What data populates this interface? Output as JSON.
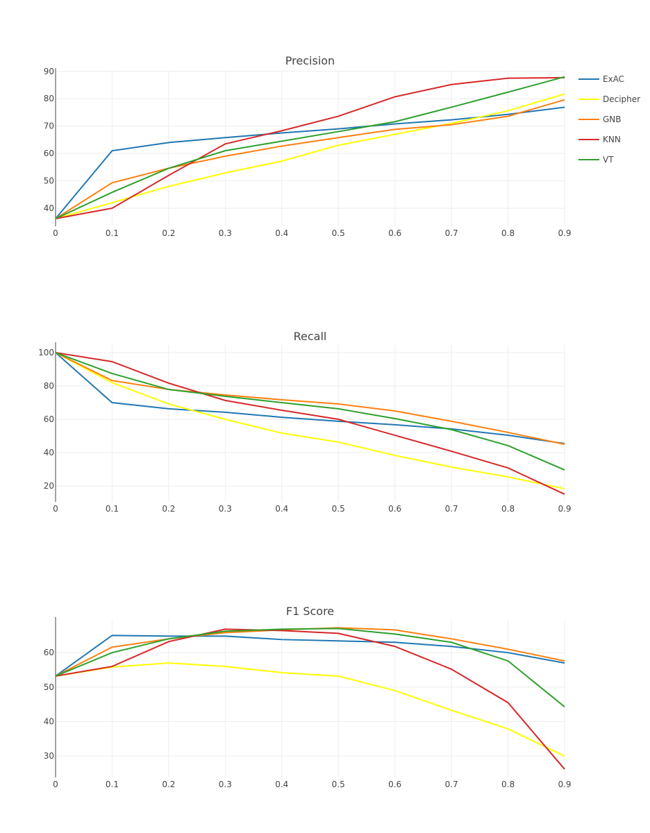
{
  "legend": [
    {
      "name": "ExAC",
      "color": "#1f77b4"
    },
    {
      "name": "Decipher",
      "color": "#ffff00"
    },
    {
      "name": "GNB",
      "color": "#ff7f0e"
    },
    {
      "name": "KNN",
      "color": "#d62728"
    },
    {
      "name": "VT",
      "color": "#2ca02c"
    }
  ],
  "chart_data": [
    {
      "type": "line",
      "title": "Precision",
      "x": [
        0,
        0.1,
        0.2,
        0.3,
        0.4,
        0.5,
        0.6,
        0.7,
        0.8,
        0.9
      ],
      "xticks": [
        "0",
        "0.1",
        "0.2",
        "0.3",
        "0.4",
        "0.5",
        "0.6",
        "0.7",
        "0.8",
        "0.9"
      ],
      "yticks": [
        40,
        50,
        60,
        70,
        80,
        90
      ],
      "ylim": [
        33.4,
        90.2
      ],
      "xlim": [
        0,
        0.9
      ],
      "grid": true,
      "legend": "top-right",
      "series": [
        {
          "name": "ExAC",
          "values": [
            36.2,
            61,
            64,
            65.8,
            67.5,
            69,
            70.8,
            72.3,
            74.3,
            76.9
          ]
        },
        {
          "name": "Decipher",
          "values": [
            36.2,
            42,
            48,
            52.9,
            57.2,
            63,
            67,
            71,
            75.6,
            81.7
          ]
        },
        {
          "name": "GNB",
          "values": [
            36.2,
            49.3,
            54.6,
            59,
            62.7,
            65.8,
            68.8,
            70.5,
            73.6,
            79.6
          ]
        },
        {
          "name": "KNN",
          "values": [
            36.2,
            40,
            52,
            63.5,
            68.3,
            73.6,
            80.7,
            85.2,
            87.5,
            87.7
          ]
        },
        {
          "name": "VT",
          "values": [
            36.2,
            45.8,
            54.6,
            61,
            64.5,
            68,
            71.6,
            76.9,
            82.4,
            88
          ]
        }
      ]
    },
    {
      "type": "line",
      "title": "Recall",
      "x": [
        0,
        0.1,
        0.2,
        0.3,
        0.4,
        0.5,
        0.6,
        0.7,
        0.8,
        0.9
      ],
      "xticks": [
        "0",
        "0.1",
        "0.2",
        "0.3",
        "0.4",
        "0.5",
        "0.6",
        "0.7",
        "0.8",
        "0.9"
      ],
      "yticks": [
        20,
        40,
        60,
        80,
        100
      ],
      "ylim": [
        10.4,
        104.6
      ],
      "xlim": [
        0,
        0.9
      ],
      "grid": true,
      "series": [
        {
          "name": "ExAC",
          "values": [
            100,
            70,
            66.3,
            64.2,
            61.2,
            58.8,
            56.7,
            54.2,
            50.4,
            45.4
          ]
        },
        {
          "name": "Decipher",
          "values": [
            100,
            82,
            69.2,
            60,
            51.7,
            46.3,
            38.3,
            31.3,
            25.4,
            18.3
          ]
        },
        {
          "name": "GNB",
          "values": [
            100,
            83.3,
            77.9,
            74.6,
            71.7,
            69.2,
            65,
            58.8,
            52.1,
            45
          ]
        },
        {
          "name": "KNN",
          "values": [
            100,
            94.6,
            81.7,
            71.3,
            65.4,
            60,
            50.4,
            40.8,
            30.8,
            15
          ]
        },
        {
          "name": "VT",
          "values": [
            100,
            87.5,
            77.9,
            73.8,
            70,
            66.3,
            60.4,
            53.8,
            44.2,
            29.6
          ]
        }
      ]
    },
    {
      "type": "line",
      "title": "F1 Score",
      "x": [
        0,
        0.1,
        0.2,
        0.3,
        0.4,
        0.5,
        0.6,
        0.7,
        0.8,
        0.9
      ],
      "xticks": [
        "0",
        "0.1",
        "0.2",
        "0.3",
        "0.4",
        "0.5",
        "0.6",
        "0.7",
        "0.8",
        "0.9"
      ],
      "yticks": [
        30,
        40,
        50,
        60
      ],
      "ylim": [
        23.8,
        69.5
      ],
      "xlim": [
        0,
        0.9
      ],
      "grid": true,
      "series": [
        {
          "name": "ExAC",
          "values": [
            53.2,
            65,
            64.8,
            64.8,
            63.8,
            63.4,
            63,
            61.8,
            60,
            57
          ]
        },
        {
          "name": "Decipher",
          "values": [
            53.2,
            55.8,
            57,
            56,
            54.2,
            53.2,
            49,
            43.3,
            37.9,
            30
          ]
        },
        {
          "name": "GNB",
          "values": [
            53.2,
            61.6,
            64,
            65.8,
            66.6,
            67.2,
            66.6,
            64,
            61,
            57.6
          ]
        },
        {
          "name": "KNN",
          "values": [
            53.2,
            56,
            63.2,
            66.8,
            66.4,
            65.6,
            61.8,
            55.2,
            45.5,
            26.2
          ]
        },
        {
          "name": "VT",
          "values": [
            53.2,
            60,
            64,
            66.2,
            66.8,
            67,
            65.4,
            63,
            57.6,
            44.3
          ]
        }
      ]
    }
  ]
}
